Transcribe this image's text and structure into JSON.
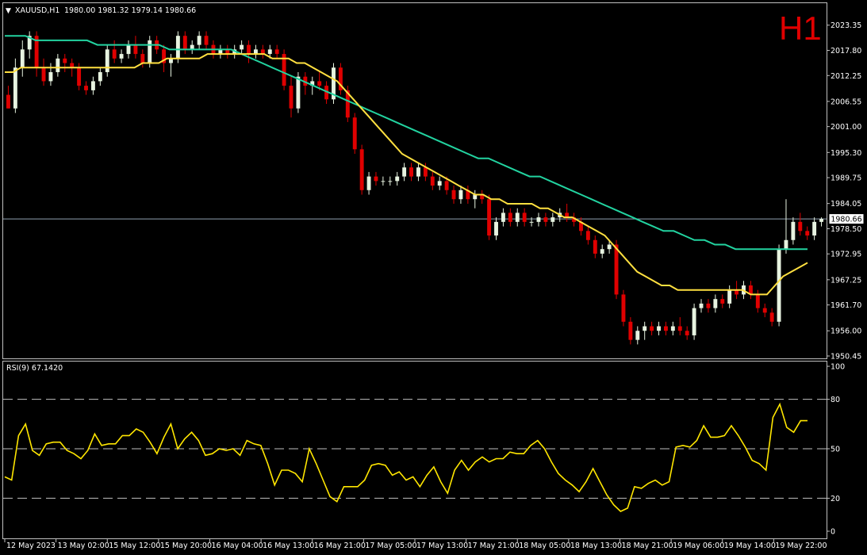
{
  "header": {
    "symbol": "XAUUSD,H1",
    "ohlc": "1980.00 1981.32 1979.14 1980.66",
    "timeframe": "H1"
  },
  "colors": {
    "background": "#000000",
    "frame": "#c0c0c0",
    "bull_body": "#e7f3e0",
    "bear_body": "#e00000",
    "ma_fast": "#ffe040",
    "ma_slow": "#22d3a0",
    "rsi_line": "#ffe600",
    "current_price_line": "#8fa0b0"
  },
  "chart_data": [
    {
      "type": "candlestick",
      "symbol": "XAUUSD",
      "period": "H1",
      "ylim": [
        1950.45,
        2025.4
      ],
      "y_ticks": [
        "2023.35",
        "2017.80",
        "2012.25",
        "2006.55",
        "2001.00",
        "1995.30",
        "1989.75",
        "1984.05",
        "1978.50",
        "1972.95",
        "1967.25",
        "1961.70",
        "1956.00",
        "1950.45"
      ],
      "current_price": "1980.66",
      "candles": [
        [
          2008,
          2010,
          2005,
          2005
        ],
        [
          2005,
          2016,
          2004,
          2014
        ],
        [
          2014,
          2020,
          2012,
          2018
        ],
        [
          2018,
          2022,
          2016,
          2021
        ],
        [
          2021,
          2022,
          2012,
          2014
        ],
        [
          2014,
          2016,
          2010,
          2011
        ],
        [
          2011,
          2015,
          2010,
          2013
        ],
        [
          2013,
          2017,
          2012,
          2016
        ],
        [
          2016,
          2017,
          2013,
          2015
        ],
        [
          2015,
          2016,
          2012,
          2014
        ],
        [
          2014,
          2015,
          2009,
          2010
        ],
        [
          2010,
          2011,
          2008,
          2009
        ],
        [
          2009,
          2012,
          2008,
          2011
        ],
        [
          2011,
          2014,
          2010,
          2013
        ],
        [
          2013,
          2019,
          2012,
          2018
        ],
        [
          2018,
          2020,
          2015,
          2016
        ],
        [
          2016,
          2018,
          2015,
          2017
        ],
        [
          2017,
          2020,
          2016,
          2019
        ],
        [
          2019,
          2021,
          2016,
          2017
        ],
        [
          2017,
          2018,
          2014,
          2015
        ],
        [
          2015,
          2021,
          2014,
          2020
        ],
        [
          2020,
          2021,
          2017,
          2018
        ],
        [
          2018,
          2019,
          2013,
          2015
        ],
        [
          2015,
          2017,
          2012,
          2016
        ],
        [
          2016,
          2022,
          2015,
          2021
        ],
        [
          2021,
          2022,
          2017,
          2018
        ],
        [
          2018,
          2020,
          2017,
          2019
        ],
        [
          2019,
          2022,
          2018,
          2021
        ],
        [
          2021,
          2022,
          2018,
          2019
        ],
        [
          2019,
          2020,
          2016,
          2017
        ],
        [
          2017,
          2019,
          2016,
          2018
        ],
        [
          2018,
          2019,
          2016,
          2017
        ],
        [
          2017,
          2019,
          2016,
          2018
        ],
        [
          2018,
          2020,
          2017,
          2019
        ],
        [
          2019,
          2020,
          2015,
          2017
        ],
        [
          2017,
          2019,
          2016,
          2018
        ],
        [
          2018,
          2019,
          2016,
          2017
        ],
        [
          2017,
          2019,
          2016,
          2018
        ],
        [
          2018,
          2019,
          2016,
          2017
        ],
        [
          2017,
          2018,
          2009,
          2010
        ],
        [
          2010,
          2012,
          2003,
          2005
        ],
        [
          2005,
          2013,
          2004,
          2012
        ],
        [
          2012,
          2013,
          2008,
          2010
        ],
        [
          2010,
          2012,
          2008,
          2011
        ],
        [
          2011,
          2013,
          2009,
          2010
        ],
        [
          2010,
          2011,
          2006,
          2007
        ],
        [
          2007,
          2015,
          2006,
          2014
        ],
        [
          2014,
          2015,
          2008,
          2009
        ],
        [
          2009,
          2010,
          2002,
          2003
        ],
        [
          2003,
          2004,
          1995,
          1996
        ],
        [
          1996,
          1997,
          1986,
          1987
        ],
        [
          1987,
          1991,
          1986,
          1990
        ],
        [
          1990,
          1991,
          1988,
          1989
        ],
        [
          1989,
          1990,
          1988,
          1989
        ],
        [
          1989,
          1990,
          1988,
          1989
        ],
        [
          1989,
          1991,
          1988,
          1990
        ],
        [
          1990,
          1993,
          1989,
          1992
        ],
        [
          1992,
          1993,
          1989,
          1990
        ],
        [
          1990,
          1993,
          1989,
          1992
        ],
        [
          1992,
          1993,
          1989,
          1990
        ],
        [
          1990,
          1991,
          1987,
          1988
        ],
        [
          1988,
          1990,
          1987,
          1989
        ],
        [
          1989,
          1990,
          1986,
          1987
        ],
        [
          1987,
          1988,
          1984,
          1985
        ],
        [
          1985,
          1988,
          1984,
          1987
        ],
        [
          1987,
          1988,
          1984,
          1985
        ],
        [
          1985,
          1987,
          1983,
          1986
        ],
        [
          1986,
          1987,
          1984,
          1985
        ],
        [
          1985,
          1986,
          1976,
          1977
        ],
        [
          1977,
          1981,
          1976,
          1980
        ],
        [
          1980,
          1983,
          1979,
          1982
        ],
        [
          1982,
          1983,
          1979,
          1980
        ],
        [
          1980,
          1983,
          1979,
          1982
        ],
        [
          1982,
          1983,
          1979,
          1980
        ],
        [
          1980,
          1981,
          1979,
          1980
        ],
        [
          1980,
          1982,
          1979,
          1981
        ],
        [
          1981,
          1982,
          1979,
          1980
        ],
        [
          1980,
          1982,
          1979,
          1981
        ],
        [
          1981,
          1983,
          1980,
          1982
        ],
        [
          1982,
          1984,
          1980,
          1981
        ],
        [
          1981,
          1982,
          1979,
          1980
        ],
        [
          1980,
          1981,
          1977,
          1978
        ],
        [
          1978,
          1979,
          1975,
          1976
        ],
        [
          1976,
          1977,
          1972,
          1973
        ],
        [
          1973,
          1975,
          1972,
          1974
        ],
        [
          1974,
          1976,
          1973,
          1975
        ],
        [
          1975,
          1976,
          1963,
          1964
        ],
        [
          1964,
          1965,
          1957,
          1958
        ],
        [
          1958,
          1959,
          1953,
          1954
        ],
        [
          1954,
          1957,
          1953,
          1956
        ],
        [
          1956,
          1958,
          1954,
          1957
        ],
        [
          1957,
          1958,
          1955,
          1956
        ],
        [
          1956,
          1958,
          1955,
          1957
        ],
        [
          1957,
          1958,
          1955,
          1956
        ],
        [
          1956,
          1958,
          1955,
          1957
        ],
        [
          1957,
          1959,
          1955,
          1956
        ],
        [
          1956,
          1957,
          1954,
          1955
        ],
        [
          1955,
          1962,
          1954,
          1961
        ],
        [
          1961,
          1963,
          1960,
          1962
        ],
        [
          1962,
          1963,
          1960,
          1961
        ],
        [
          1961,
          1964,
          1960,
          1963
        ],
        [
          1963,
          1964,
          1961,
          1962
        ],
        [
          1962,
          1966,
          1961,
          1965
        ],
        [
          1965,
          1967,
          1963,
          1964
        ],
        [
          1964,
          1967,
          1963,
          1966
        ],
        [
          1966,
          1967,
          1963,
          1964
        ],
        [
          1964,
          1965,
          1960,
          1961
        ],
        [
          1961,
          1962,
          1959,
          1960
        ],
        [
          1960,
          1961,
          1957,
          1958
        ],
        [
          1958,
          1975,
          1957,
          1974
        ],
        [
          1974,
          1985,
          1973,
          1976
        ],
        [
          1976,
          1981,
          1975,
          1980
        ],
        [
          1980,
          1982,
          1977,
          1978
        ],
        [
          1978,
          1979,
          1976,
          1977
        ],
        [
          1977,
          1981,
          1976,
          1980
        ],
        [
          1980,
          1981,
          1979,
          1980.66
        ]
      ],
      "ma_fast": [
        2013,
        2013,
        2014,
        2014,
        2014,
        2014,
        2014,
        2014,
        2014,
        2014,
        2014,
        2014,
        2014,
        2014,
        2014,
        2014,
        2014,
        2015,
        2015,
        2015,
        2016,
        2016,
        2016,
        2016,
        2016,
        2017,
        2017,
        2017,
        2017,
        2017,
        2017,
        2017,
        2017,
        2016,
        2016,
        2016,
        2015,
        2015,
        2014,
        2013,
        2012,
        2011,
        2009,
        2007,
        2005,
        2003,
        2001,
        1999,
        1997,
        1995,
        1994,
        1993,
        1992,
        1991,
        1990,
        1989,
        1988,
        1987,
        1986,
        1986,
        1985,
        1985,
        1984,
        1984,
        1984,
        1984,
        1983,
        1983,
        1982,
        1981,
        1981,
        1980,
        1979,
        1978,
        1977,
        1975,
        1973,
        1971,
        1969,
        1968,
        1967,
        1966,
        1966,
        1965,
        1965,
        1965,
        1965,
        1965,
        1965,
        1965,
        1965,
        1965,
        1964,
        1964,
        1964,
        1966,
        1968,
        1969,
        1970,
        1971
      ],
      "ma_slow": [
        2021,
        2021,
        2021,
        2020,
        2020,
        2020,
        2020,
        2020,
        2020,
        2019,
        2019,
        2019,
        2019,
        2019,
        2019,
        2019,
        2018,
        2018,
        2018,
        2018,
        2018,
        2018,
        2018,
        2017,
        2016,
        2015,
        2014,
        2013,
        2012,
        2011,
        2010,
        2009,
        2008,
        2007,
        2006,
        2005,
        2004,
        2003,
        2002,
        2001,
        2000,
        1999,
        1998,
        1997,
        1996,
        1995,
        1994,
        1994,
        1993,
        1992,
        1991,
        1990,
        1990,
        1989,
        1988,
        1987,
        1986,
        1985,
        1984,
        1983,
        1982,
        1981,
        1980,
        1979,
        1978,
        1978,
        1977,
        1976,
        1976,
        1975,
        1975,
        1974,
        1974,
        1974,
        1974,
        1974,
        1974,
        1974,
        1974
      ],
      "x_labels": [
        "12 May 2023",
        "13 May 02:00",
        "15 May 12:00",
        "15 May 20:00",
        "16 May 04:00",
        "16 May 13:00",
        "16 May 21:00",
        "17 May 05:00",
        "17 May 13:00",
        "17 May 21:00",
        "18 May 05:00",
        "18 May 13:00",
        "18 May 21:00",
        "19 May 06:00",
        "19 May 14:00",
        "19 May 22:00"
      ]
    },
    {
      "type": "line",
      "title": "RSI(9) 67.1420",
      "ylim": [
        0,
        100
      ],
      "y_ticks": [
        "100",
        "80",
        "50",
        "20",
        "0"
      ],
      "levels": [
        80,
        50,
        20
      ],
      "values": [
        33,
        31,
        58,
        65,
        49,
        46,
        53,
        54,
        54,
        49,
        47,
        44,
        49,
        59,
        52,
        53,
        53,
        58,
        58,
        62,
        60,
        54,
        47,
        57,
        65,
        50,
        56,
        60,
        55,
        46,
        47,
        50,
        49,
        50,
        46,
        55,
        53,
        52,
        41,
        28,
        37,
        37,
        35,
        30,
        50,
        41,
        31,
        21,
        18,
        27,
        27,
        27,
        31,
        40,
        41,
        40,
        34,
        36,
        31,
        33,
        27,
        34,
        39,
        30,
        23,
        37,
        43,
        37,
        42,
        45,
        42,
        44,
        44,
        48,
        47,
        47,
        52,
        55,
        50,
        42,
        35,
        31,
        28,
        24,
        30,
        38,
        30,
        22,
        16,
        12,
        14,
        27,
        26,
        29,
        31,
        28,
        30,
        51,
        52,
        51,
        55,
        64,
        57,
        57,
        58,
        64,
        58,
        51,
        43,
        41,
        37,
        69,
        77,
        63,
        60,
        67,
        67
      ]
    }
  ]
}
